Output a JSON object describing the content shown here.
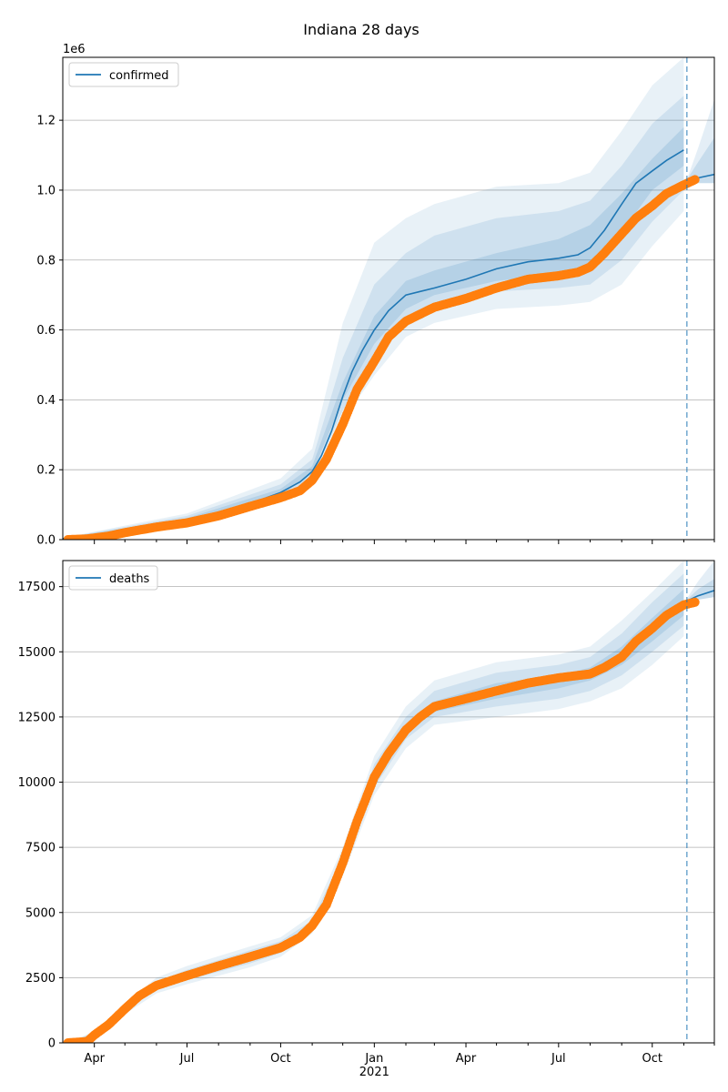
{
  "title": "Indiana 28 days",
  "colors": {
    "line": "#1f77b4",
    "band": "#1f77b4",
    "observed": "#ff7f0e",
    "grid": "#b0b0b0"
  },
  "chart_data": [
    {
      "type": "line",
      "series": [
        {
          "name": "confirmed"
        }
      ],
      "legend": "top-left",
      "offset_label": "1e6",
      "ylim": [
        0,
        1.38
      ],
      "yticks": [
        0,
        0.2,
        0.4,
        0.6,
        0.8,
        1.0,
        1.2
      ],
      "ytick_labels": [
        "0.0",
        "0.2",
        "0.4",
        "0.6",
        "0.8",
        "1.0",
        "1.2"
      ],
      "grid": "horizontal",
      "model_mean": {
        "x": [
          "2020-03-01",
          "2020-04-01",
          "2020-05-01",
          "2020-06-01",
          "2020-07-01",
          "2020-08-01",
          "2020-09-01",
          "2020-10-01",
          "2020-10-20",
          "2020-11-01",
          "2020-11-10",
          "2020-11-20",
          "2020-12-01",
          "2020-12-10",
          "2020-12-20",
          "2021-01-01",
          "2021-01-15",
          "2021-02-01",
          "2021-02-15",
          "2021-03-01",
          "2021-04-01",
          "2021-05-01",
          "2021-06-01",
          "2021-07-01",
          "2021-07-20",
          "2021-08-01",
          "2021-08-15",
          "2021-09-01",
          "2021-09-15",
          "2021-10-01",
          "2021-10-15",
          "2021-11-01"
        ],
        "y": [
          0.003,
          0.006,
          0.028,
          0.045,
          0.058,
          0.078,
          0.103,
          0.135,
          0.165,
          0.195,
          0.24,
          0.31,
          0.41,
          0.48,
          0.54,
          0.6,
          0.655,
          0.7,
          0.71,
          0.72,
          0.745,
          0.775,
          0.795,
          0.805,
          0.815,
          0.835,
          0.885,
          0.96,
          1.02,
          1.055,
          1.085,
          1.115
        ]
      },
      "bands": [
        {
          "x": [
            "2020-03-01",
            "2020-07-01",
            "2020-10-01",
            "2020-11-01",
            "2020-12-01",
            "2021-01-01",
            "2021-02-01",
            "2021-03-01",
            "2021-05-01",
            "2021-07-01",
            "2021-08-01",
            "2021-09-01",
            "2021-10-01",
            "2021-11-01"
          ],
          "lo": [
            0.002,
            0.05,
            0.11,
            0.17,
            0.34,
            0.47,
            0.58,
            0.62,
            0.66,
            0.67,
            0.68,
            0.73,
            0.84,
            0.94
          ],
          "hi": [
            0.005,
            0.075,
            0.175,
            0.26,
            0.62,
            0.85,
            0.92,
            0.96,
            1.01,
            1.02,
            1.05,
            1.17,
            1.3,
            1.38
          ]
        },
        {
          "x": [
            "2020-03-01",
            "2020-07-01",
            "2020-10-01",
            "2020-11-01",
            "2020-12-01",
            "2021-01-01",
            "2021-02-01",
            "2021-03-01",
            "2021-05-01",
            "2021-07-01",
            "2021-08-01",
            "2021-09-01",
            "2021-10-01",
            "2021-11-01"
          ],
          "lo": [
            0.002,
            0.053,
            0.118,
            0.18,
            0.37,
            0.52,
            0.62,
            0.66,
            0.71,
            0.72,
            0.73,
            0.8,
            0.91,
            1.0
          ],
          "hi": [
            0.005,
            0.068,
            0.158,
            0.23,
            0.52,
            0.73,
            0.82,
            0.87,
            0.92,
            0.94,
            0.97,
            1.07,
            1.19,
            1.27
          ]
        },
        {
          "x": [
            "2020-03-01",
            "2020-07-01",
            "2020-10-01",
            "2020-11-01",
            "2020-12-01",
            "2021-01-01",
            "2021-02-01",
            "2021-03-01",
            "2021-05-01",
            "2021-07-01",
            "2021-08-01",
            "2021-09-01",
            "2021-10-01",
            "2021-11-01"
          ],
          "lo": [
            0.003,
            0.056,
            0.126,
            0.19,
            0.4,
            0.56,
            0.66,
            0.7,
            0.74,
            0.76,
            0.78,
            0.88,
            1.0,
            1.07
          ],
          "hi": [
            0.004,
            0.062,
            0.145,
            0.21,
            0.45,
            0.64,
            0.74,
            0.77,
            0.82,
            0.86,
            0.9,
            0.99,
            1.09,
            1.18
          ]
        }
      ],
      "forecast": {
        "x": [
          "2021-11-04",
          "2021-11-15",
          "2021-12-01"
        ],
        "mean": [
          1.025,
          1.035,
          1.045
        ],
        "lo": [
          1.02,
          1.02,
          1.02
        ],
        "hi": [
          1.03,
          1.12,
          1.26
        ],
        "hi_inner": [
          1.03,
          1.08,
          1.15
        ]
      },
      "observed": {
        "x": [
          "2020-03-06",
          "2020-03-25",
          "2020-04-15",
          "2020-05-01",
          "2020-06-01",
          "2020-07-01",
          "2020-08-01",
          "2020-09-01",
          "2020-10-01",
          "2020-10-20",
          "2020-11-01",
          "2020-11-15",
          "2020-12-01",
          "2020-12-15",
          "2021-01-01",
          "2021-01-15",
          "2021-02-01",
          "2021-03-01",
          "2021-04-01",
          "2021-05-01",
          "2021-06-01",
          "2021-07-01",
          "2021-07-20",
          "2021-08-01",
          "2021-08-15",
          "2021-09-01",
          "2021-09-15",
          "2021-10-01",
          "2021-10-15",
          "2021-11-01",
          "2021-11-12"
        ],
        "y": [
          0.0,
          0.002,
          0.01,
          0.02,
          0.036,
          0.048,
          0.068,
          0.095,
          0.12,
          0.14,
          0.17,
          0.23,
          0.33,
          0.43,
          0.51,
          0.58,
          0.625,
          0.665,
          0.69,
          0.72,
          0.745,
          0.755,
          0.765,
          0.78,
          0.82,
          0.875,
          0.92,
          0.955,
          0.99,
          1.015,
          1.03
        ]
      },
      "forecast_start": "2021-11-04"
    },
    {
      "type": "line",
      "series": [
        {
          "name": "deaths"
        }
      ],
      "legend": "top-left",
      "ylim": [
        0,
        18500
      ],
      "yticks": [
        0,
        2500,
        5000,
        7500,
        10000,
        12500,
        15000,
        17500
      ],
      "ytick_labels": [
        "0",
        "2500",
        "5000",
        "7500",
        "10000",
        "12500",
        "15000",
        "17500"
      ],
      "grid": "horizontal",
      "model_mean": {
        "x": [
          "2020-03-06",
          "2020-03-25",
          "2020-04-01",
          "2020-04-15",
          "2020-05-01",
          "2020-05-15",
          "2020-06-01",
          "2020-07-01",
          "2020-08-01",
          "2020-09-01",
          "2020-10-01",
          "2020-10-20",
          "2020-11-01",
          "2020-11-15",
          "2020-12-01",
          "2020-12-15",
          "2021-01-01",
          "2021-01-15",
          "2021-02-01",
          "2021-02-15",
          "2021-03-01",
          "2021-04-01",
          "2021-05-01",
          "2021-06-01",
          "2021-07-01",
          "2021-08-01",
          "2021-08-15",
          "2021-09-01",
          "2021-09-15",
          "2021-10-01",
          "2021-10-15",
          "2021-11-01",
          "2021-11-12"
        ],
        "y": [
          0,
          50,
          300,
          700,
          1300,
          1800,
          2200,
          2580,
          2950,
          3300,
          3650,
          4050,
          4500,
          5300,
          6900,
          8500,
          10200,
          11100,
          12000,
          12500,
          12900,
          13200,
          13500,
          13800,
          14000,
          14150,
          14400,
          14800,
          15400,
          15900,
          16400,
          16800,
          16900
        ]
      },
      "bands": [
        {
          "x": [
            "2020-03-06",
            "2020-04-01",
            "2020-05-01",
            "2020-06-01",
            "2020-07-01",
            "2020-09-01",
            "2020-10-01",
            "2020-11-01",
            "2020-12-01",
            "2021-01-01",
            "2021-02-01",
            "2021-03-01",
            "2021-05-01",
            "2021-07-01",
            "2021-08-01",
            "2021-09-01",
            "2021-10-01",
            "2021-11-01"
          ],
          "lo": [
            0,
            150,
            1100,
            1900,
            2250,
            2900,
            3300,
            4200,
            6400,
            9500,
            11300,
            12200,
            12500,
            12800,
            13100,
            13600,
            14500,
            15600
          ],
          "hi": [
            0,
            450,
            1500,
            2500,
            2950,
            3700,
            4050,
            4900,
            7500,
            11000,
            12900,
            13900,
            14600,
            14900,
            15200,
            16200,
            17300,
            18500
          ]
        },
        {
          "x": [
            "2020-03-06",
            "2020-04-01",
            "2020-05-01",
            "2020-06-01",
            "2020-07-01",
            "2020-09-01",
            "2020-10-01",
            "2020-11-01",
            "2020-12-01",
            "2021-01-01",
            "2021-02-01",
            "2021-03-01",
            "2021-05-01",
            "2021-07-01",
            "2021-08-01",
            "2021-09-01",
            "2021-10-01",
            "2021-11-01"
          ],
          "lo": [
            0,
            200,
            1200,
            2050,
            2400,
            3050,
            3450,
            4350,
            6650,
            9800,
            11650,
            12500,
            12900,
            13200,
            13500,
            14100,
            15000,
            16000
          ],
          "hi": [
            0,
            400,
            1400,
            2350,
            2800,
            3550,
            3900,
            4700,
            7200,
            10700,
            12500,
            13500,
            14200,
            14500,
            14800,
            15700,
            16900,
            18000
          ]
        },
        {
          "x": [
            "2020-03-06",
            "2020-04-01",
            "2020-05-01",
            "2020-06-01",
            "2020-07-01",
            "2020-09-01",
            "2020-10-01",
            "2020-11-01",
            "2020-12-01",
            "2021-01-01",
            "2021-02-01",
            "2021-03-01",
            "2021-05-01",
            "2021-07-01",
            "2021-08-01",
            "2021-09-01",
            "2021-10-01",
            "2021-11-01"
          ],
          "lo": [
            0,
            250,
            1250,
            2150,
            2500,
            3200,
            3550,
            4450,
            6800,
            10000,
            11850,
            12700,
            13200,
            13600,
            13900,
            14500,
            15400,
            16400
          ],
          "hi": [
            0,
            350,
            1350,
            2250,
            2650,
            3400,
            3750,
            4550,
            7000,
            10400,
            12200,
            13100,
            13800,
            14100,
            14400,
            15200,
            16300,
            17400
          ]
        }
      ],
      "forecast": {
        "x": [
          "2021-11-04",
          "2021-11-15",
          "2021-12-01"
        ],
        "mean": [
          16950,
          17150,
          17350
        ],
        "lo": [
          16850,
          17000,
          17100
        ],
        "hi": [
          17050,
          17700,
          18500
        ],
        "hi_inner": [
          17000,
          17400,
          17800
        ]
      },
      "observed": {
        "x": [
          "2020-03-06",
          "2020-03-25",
          "2020-04-01",
          "2020-04-15",
          "2020-05-01",
          "2020-05-15",
          "2020-06-01",
          "2020-07-01",
          "2020-08-01",
          "2020-09-01",
          "2020-10-01",
          "2020-10-20",
          "2020-11-01",
          "2020-11-15",
          "2020-12-01",
          "2020-12-15",
          "2021-01-01",
          "2021-01-15",
          "2021-02-01",
          "2021-02-15",
          "2021-03-01",
          "2021-04-01",
          "2021-05-01",
          "2021-06-01",
          "2021-07-01",
          "2021-08-01",
          "2021-08-15",
          "2021-09-01",
          "2021-09-15",
          "2021-10-01",
          "2021-10-15",
          "2021-11-01",
          "2021-11-12"
        ],
        "y": [
          0,
          50,
          300,
          700,
          1300,
          1800,
          2200,
          2580,
          2950,
          3300,
          3650,
          4050,
          4500,
          5300,
          6900,
          8500,
          10200,
          11100,
          12000,
          12500,
          12900,
          13200,
          13500,
          13800,
          14000,
          14150,
          14400,
          14800,
          15400,
          15900,
          16400,
          16800,
          16900
        ]
      },
      "forecast_start": "2021-11-04"
    }
  ],
  "x_axis": {
    "start": "2020-03-01",
    "end": "2021-12-01",
    "ticks": [
      "2020-04-01",
      "2020-07-01",
      "2020-10-01",
      "2021-01-01",
      "2021-04-01",
      "2021-07-01",
      "2021-10-01"
    ],
    "tick_labels": [
      "Apr",
      "Jul",
      "Oct",
      "Jan",
      "Apr",
      "Jul",
      "Oct"
    ],
    "minor_ticks": [
      "2020-05-01",
      "2020-06-01",
      "2020-08-01",
      "2020-09-01",
      "2020-11-01",
      "2020-12-01",
      "2021-02-01",
      "2021-03-01",
      "2021-05-01",
      "2021-06-01",
      "2021-08-01",
      "2021-09-01",
      "2021-11-01",
      "2021-12-01"
    ],
    "year_label": "2021"
  }
}
